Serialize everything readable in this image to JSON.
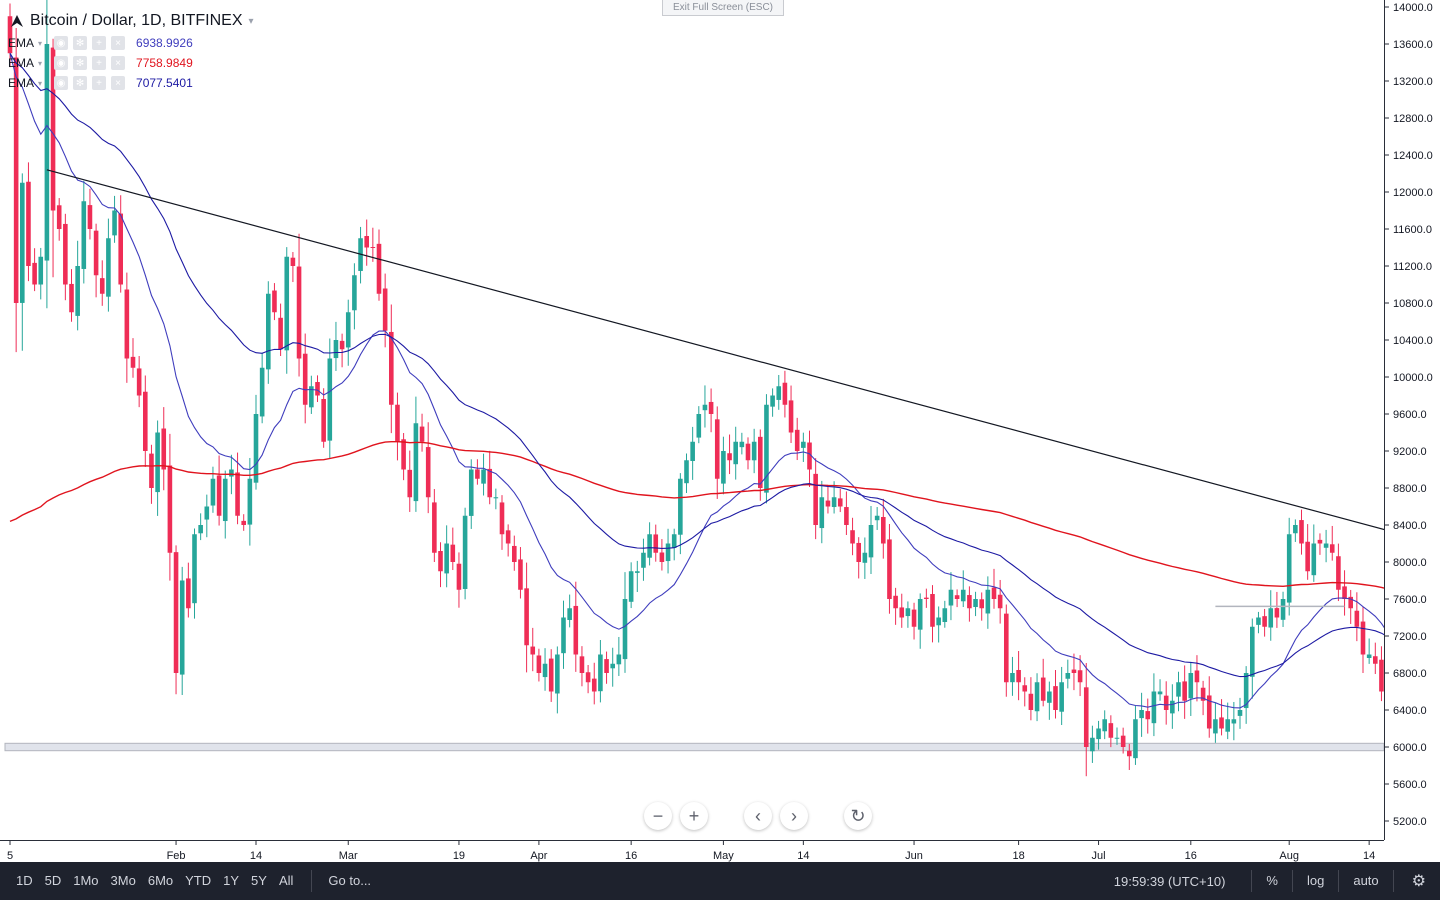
{
  "header": {
    "symbol_title": "Bitcoin / Dollar, 1D, BITFINEX",
    "exit_fullscreen": "Exit Full Screen (ESC)"
  },
  "indicators": [
    {
      "label": "EMA",
      "value": "6938.9926",
      "color": "#3f3dbd"
    },
    {
      "label": "EMA",
      "value": "7758.9849",
      "color": "#e0141e"
    },
    {
      "label": "EMA",
      "value": "7077.5401",
      "color": "#1d1aa3"
    }
  ],
  "price_axis": {
    "ticks": [
      "14000.0",
      "13600.0",
      "13200.0",
      "12800.0",
      "12400.0",
      "12000.0",
      "11600.0",
      "11200.0",
      "10800.0",
      "10400.0",
      "10000.0",
      "9600.0",
      "9200.0",
      "8800.0",
      "8400.0",
      "8000.0",
      "7600.0",
      "7200.0",
      "6800.0",
      "6400.0",
      "6000.0",
      "5600.0",
      "5200.0"
    ]
  },
  "time_axis": {
    "ticks": [
      {
        "label": "5",
        "day": 0
      },
      {
        "label": "Feb",
        "day": 27
      },
      {
        "label": "14",
        "day": 40
      },
      {
        "label": "Mar",
        "day": 55
      },
      {
        "label": "19",
        "day": 73
      },
      {
        "label": "Apr",
        "day": 86
      },
      {
        "label": "16",
        "day": 101
      },
      {
        "label": "May",
        "day": 116
      },
      {
        "label": "14",
        "day": 129
      },
      {
        "label": "Jun",
        "day": 147
      },
      {
        "label": "18",
        "day": 164
      },
      {
        "label": "Jul",
        "day": 177
      },
      {
        "label": "16",
        "day": 192
      },
      {
        "label": "Aug",
        "day": 208
      },
      {
        "label": "14",
        "day": 221
      }
    ]
  },
  "chart_data": {
    "type": "candlestick",
    "up_color": "#26a69a",
    "down_color": "#ef2d56",
    "ylim": [
      4950,
      14100
    ],
    "start_day_label": "5",
    "close": [
      13500,
      10800,
      12100,
      11200,
      11000,
      11300,
      13600,
      11800,
      11600,
      11000,
      10700,
      11200,
      11900,
      11600,
      11100,
      10900,
      11500,
      11800,
      11000,
      10200,
      10100,
      9800,
      9200,
      8800,
      9400,
      9000,
      8100,
      6800,
      7800,
      7500,
      8300,
      8400,
      8600,
      8900,
      8500,
      8900,
      9000,
      8500,
      8400,
      8900,
      9600,
      10100,
      10900,
      10700,
      10300,
      11300,
      11200,
      10200,
      9700,
      9900,
      9800,
      9300,
      10200,
      10400,
      10300,
      10700,
      11100,
      11500,
      11400,
      11400,
      10900,
      10500,
      9700,
      9300,
      9000,
      8700,
      9500,
      9300,
      8700,
      8100,
      7900,
      8200,
      8000,
      7700,
      8500,
      9000,
      8900,
      9000,
      8700,
      8700,
      8300,
      8200,
      8000,
      7700,
      7100,
      7000,
      6800,
      6900,
      6600,
      7000,
      7400,
      7500,
      7000,
      6800,
      6700,
      6600,
      7000,
      6800,
      6900,
      7000,
      7600,
      7900,
      7900,
      8100,
      8300,
      8100,
      8000,
      8200,
      8300,
      8900,
      9100,
      9300,
      9600,
      9700,
      9600,
      8900,
      9200,
      9100,
      9300,
      9300,
      9100,
      9300,
      8800,
      9700,
      9800,
      9900,
      9700,
      9400,
      9200,
      9300,
      9000,
      8400,
      8700,
      8600,
      8700,
      8600,
      8400,
      8200,
      8000,
      8100,
      8400,
      8500,
      8200,
      7600,
      7500,
      7400,
      7500,
      7300,
      7600,
      7600,
      7300,
      7400,
      7500,
      7700,
      7600,
      7700,
      7500,
      7600,
      7500,
      7700,
      7600,
      7500,
      6700,
      6800,
      6700,
      6600,
      6400,
      6700,
      6500,
      6600,
      6400,
      6700,
      6800,
      6800,
      6700,
      6000,
      6100,
      6200,
      6300,
      6100,
      6100,
      6000,
      5900,
      6300,
      6400,
      6300,
      6600,
      6600,
      6400,
      6500,
      6700,
      6500,
      6800,
      6700,
      6500,
      6200,
      6300,
      6200,
      6300,
      6300,
      6400,
      6800,
      7300,
      7400,
      7300,
      7500,
      7400,
      7600,
      8300,
      8400,
      8200,
      7900,
      8200,
      8200,
      8200,
      8100,
      7700,
      7600,
      7500,
      7300,
      7000,
      7000,
      6900,
      6600,
      6300,
      6100,
      6300,
      6400
    ],
    "emas": [
      {
        "name": "EMA",
        "period": 20,
        "color": "#3f3dbd"
      },
      {
        "name": "EMA",
        "period": 200,
        "color": "#e0141e"
      },
      {
        "name": "EMA",
        "period": 50,
        "color": "#1d1aa3"
      }
    ],
    "trendline": {
      "start": [
        6,
        12240
      ],
      "end": [
        252,
        7840
      ],
      "color": "#131722"
    },
    "support_zone": [
      5960,
      6040
    ],
    "levels": [
      {
        "from": 196,
        "to": 217,
        "value": 7520
      }
    ]
  },
  "navigation": {
    "zoom_out": "−",
    "zoom_in": "+",
    "scroll_left": "‹",
    "scroll_right": "›",
    "reset": "↻"
  },
  "toolbar": {
    "ranges": [
      "1D",
      "5D",
      "1Mo",
      "3Mo",
      "6Mo",
      "YTD",
      "1Y",
      "5Y",
      "All"
    ],
    "goto": "Go to...",
    "clock": "19:59:39 (UTC+10)",
    "percent": "%",
    "log": "log",
    "auto": "auto"
  }
}
